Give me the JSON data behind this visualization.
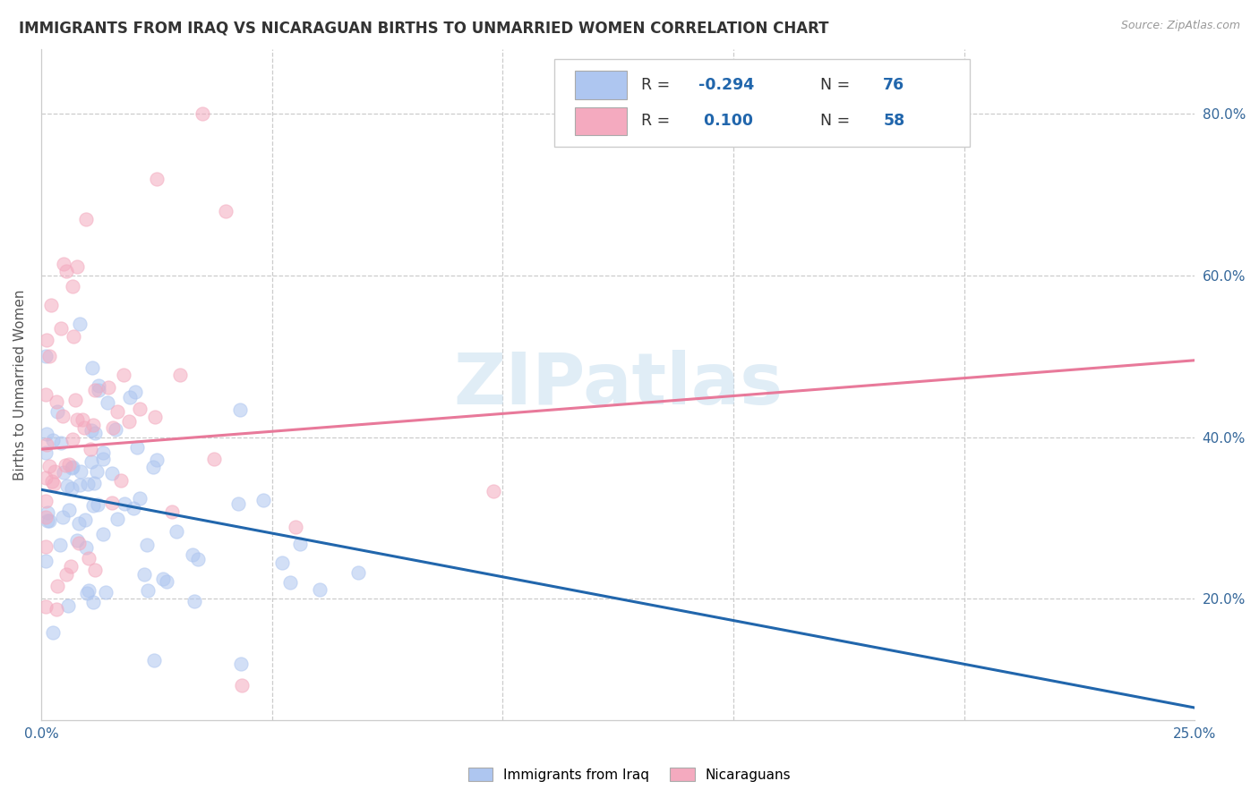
{
  "title": "IMMIGRANTS FROM IRAQ VS NICARAGUAN BIRTHS TO UNMARRIED WOMEN CORRELATION CHART",
  "source": "Source: ZipAtlas.com",
  "ylabel": "Births to Unmarried Women",
  "y_ticks": [
    0.2,
    0.4,
    0.6,
    0.8
  ],
  "y_tick_labels": [
    "20.0%",
    "40.0%",
    "60.0%",
    "80.0%"
  ],
  "xlim": [
    0.0,
    0.25
  ],
  "ylim": [
    0.05,
    0.88
  ],
  "legend_r1": "-0.294",
  "legend_n1": "76",
  "legend_r2": "0.100",
  "legend_n2": "58",
  "iraq_color": "#aec6f0",
  "nic_color": "#f4aabf",
  "iraq_line_color": "#2166ac",
  "nic_line_color": "#e8799a",
  "watermark": "ZIPatlas",
  "iraq_intercept": 0.335,
  "iraq_slope": -1.08,
  "nic_intercept": 0.385,
  "nic_slope": 0.44
}
